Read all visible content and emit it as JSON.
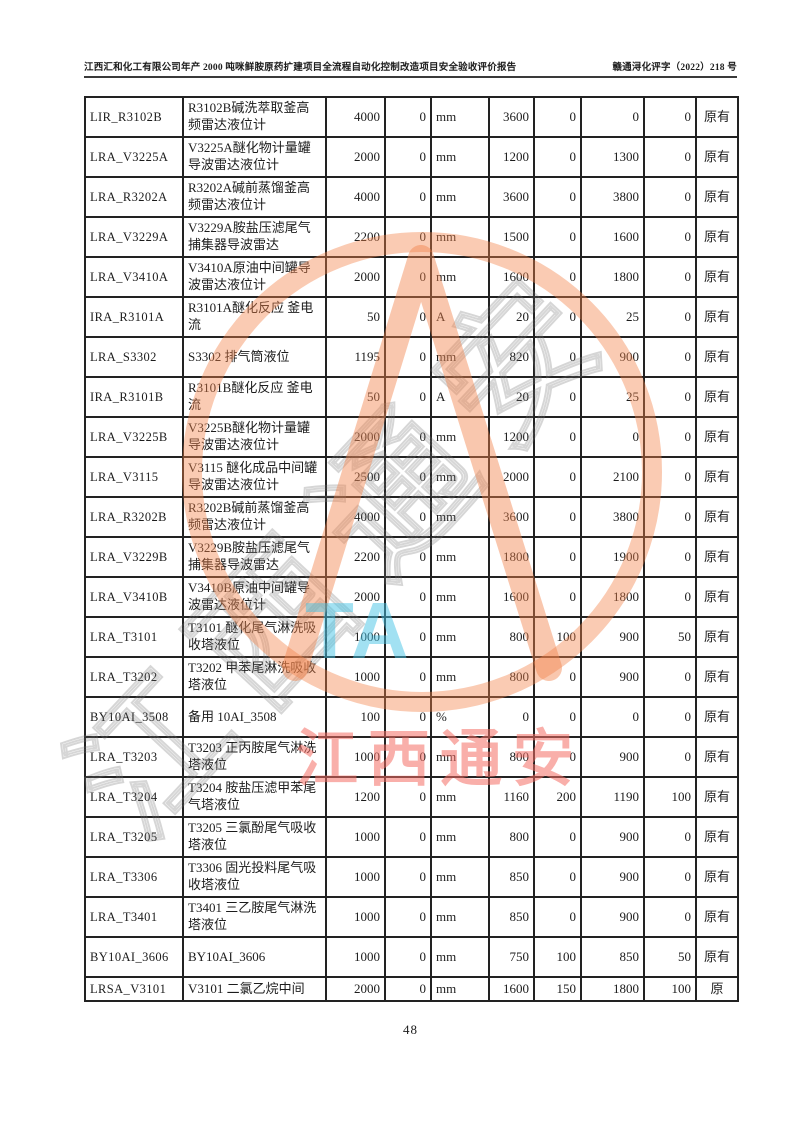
{
  "header": {
    "title": "江西汇和化工有限公司年产 2000 吨咪鲜胺原药扩建项目全流程自动化控制改造项目安全验收评价报告",
    "doc_number": "赣通浔化评字（2022）218 号"
  },
  "table": {
    "rows": [
      [
        "LIR_R3102B",
        "R3102B碱洗萃取釜高频雷达液位计",
        "4000",
        "0",
        "mm",
        "3600",
        "0",
        "0",
        "0",
        "原有"
      ],
      [
        "LRA_V3225A",
        "V3225A醚化物计量罐导波雷达液位计",
        "2000",
        "0",
        "mm",
        "1200",
        "0",
        "1300",
        "0",
        "原有"
      ],
      [
        "LRA_R3202A",
        "R3202A碱前蒸馏釜高频雷达液位计",
        "4000",
        "0",
        "mm",
        "3600",
        "0",
        "3800",
        "0",
        "原有"
      ],
      [
        "LRA_V3229A",
        "V3229A胺盐压滤尾气捕集器导波雷达",
        "2200",
        "0",
        "mm",
        "1500",
        "0",
        "1600",
        "0",
        "原有"
      ],
      [
        "LRA_V3410A",
        "V3410A原油中间罐导波雷达液位计",
        "2000",
        "0",
        "mm",
        "1600",
        "0",
        "1800",
        "0",
        "原有"
      ],
      [
        "IRA_R3101A",
        "R3101A醚化反应 釜电流",
        "50",
        "0",
        "A",
        "20",
        "0",
        "25",
        "0",
        "原有"
      ],
      [
        "LRA_S3302",
        "S3302 排气筒液位",
        "1195",
        "0",
        "mm",
        "820",
        "0",
        "900",
        "0",
        "原有"
      ],
      [
        "IRA_R3101B",
        "R3101B醚化反应 釜电流",
        "50",
        "0",
        "A",
        "20",
        "0",
        "25",
        "0",
        "原有"
      ],
      [
        "LRA_V3225B",
        "V3225B醚化物计量罐导波雷达液位计",
        "2000",
        "0",
        "mm",
        "1200",
        "0",
        "0",
        "0",
        "原有"
      ],
      [
        "LRA_V3115",
        "V3115 醚化成品中间罐导波雷达液位计",
        "2500",
        "0",
        "mm",
        "2000",
        "0",
        "2100",
        "0",
        "原有"
      ],
      [
        "LRA_R3202B",
        "R3202B碱前蒸馏釜高频雷达液位计",
        "4000",
        "0",
        "mm",
        "3600",
        "0",
        "3800",
        "0",
        "原有"
      ],
      [
        "LRA_V3229B",
        "V3229B胺盐压滤尾气捕集器导波雷达",
        "2200",
        "0",
        "mm",
        "1800",
        "0",
        "1900",
        "0",
        "原有"
      ],
      [
        "LRA_V3410B",
        "V3410B原油中间罐导波雷达液位计",
        "2000",
        "0",
        "mm",
        "1600",
        "0",
        "1800",
        "0",
        "原有"
      ],
      [
        "LRA_T3101",
        "T3101 醚化尾气淋洗吸收塔液位",
        "1000",
        "0",
        "mm",
        "800",
        "100",
        "900",
        "50",
        "原有"
      ],
      [
        "LRA_T3202",
        "T3202 甲苯尾淋洗吸收塔液位",
        "1000",
        "0",
        "mm",
        "800",
        "0",
        "900",
        "0",
        "原有"
      ],
      [
        "BY10AI_3508",
        "备用 10AI_3508",
        "100",
        "0",
        "%",
        "0",
        "0",
        "0",
        "0",
        "原有"
      ],
      [
        "LRA_T3203",
        "T3203 正丙胺尾气淋洗塔液位",
        "1000",
        "0",
        "mm",
        "800",
        "0",
        "900",
        "0",
        "原有"
      ],
      [
        "LRA_T3204",
        "T3204 胺盐压滤甲苯尾气塔液位",
        "1200",
        "0",
        "mm",
        "1160",
        "200",
        "1190",
        "100",
        "原有"
      ],
      [
        "LRA_T3205",
        "T3205 三氯酚尾气吸收塔液位",
        "1000",
        "0",
        "mm",
        "800",
        "0",
        "900",
        "0",
        "原有"
      ],
      [
        "LRA_T3306",
        "T3306 固光投料尾气吸收塔液位",
        "1000",
        "0",
        "mm",
        "850",
        "0",
        "900",
        "0",
        "原有"
      ],
      [
        "LRA_T3401",
        "T3401 三乙胺尾气淋洗塔液位",
        "1000",
        "0",
        "mm",
        "850",
        "0",
        "900",
        "0",
        "原有"
      ],
      [
        "BY10AI_3606",
        "BY10AI_3606",
        "1000",
        "0",
        "mm",
        "750",
        "100",
        "850",
        "50",
        "原有"
      ],
      [
        "LRSA_V3101",
        "V3101 二氯乙烷中间",
        "2000",
        "0",
        "mm",
        "1600",
        "150",
        "1800",
        "100",
        "原"
      ]
    ]
  },
  "watermark": {
    "stamp_text": "江西通安",
    "stamp_letters": "TA",
    "diagonal_text": "江西通安",
    "accent_orange": "#f0824b",
    "accent_cyan": "#46c3e6",
    "accent_red": "#f46e64"
  },
  "footer": {
    "page_number": "48"
  }
}
